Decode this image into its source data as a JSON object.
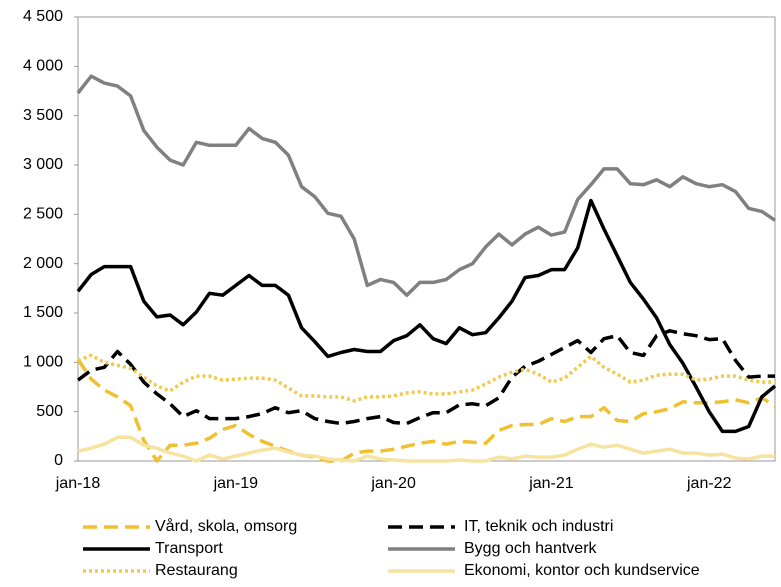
{
  "chart_data": {
    "type": "line",
    "categories": [
      "jan-18",
      null,
      null,
      null,
      null,
      null,
      null,
      null,
      null,
      null,
      null,
      null,
      "jan-19",
      null,
      null,
      null,
      null,
      null,
      null,
      null,
      null,
      null,
      null,
      null,
      "jan-20",
      null,
      null,
      null,
      null,
      null,
      null,
      null,
      null,
      null,
      null,
      null,
      "jan-21",
      null,
      null,
      null,
      null,
      null,
      null,
      null,
      null,
      null,
      null,
      null,
      "jan-22",
      null,
      null,
      null,
      null,
      null
    ],
    "ylim": [
      0,
      4500
    ],
    "yticks": [
      0,
      500,
      {
        "value": 1000,
        "label": "1 000"
      },
      {
        "value": 1500,
        "label": "1 500"
      },
      {
        "value": 2000,
        "label": "2 000"
      },
      {
        "value": 2500,
        "label": "2 500"
      },
      {
        "value": 3000,
        "label": "3 000"
      },
      {
        "value": 3500,
        "label": "3 500"
      },
      {
        "value": 4000,
        "label": "4 000"
      },
      {
        "value": 4500,
        "label": "4 500"
      }
    ],
    "legend": "bottom",
    "series": [
      {
        "name": "Vård, skola, omsorg",
        "color": "#f0c030",
        "dash": "dashed",
        "values": [
          1030,
          830,
          720,
          650,
          560,
          210,
          0,
          160,
          160,
          180,
          230,
          320,
          360,
          270,
          200,
          150,
          100,
          60,
          40,
          0,
          0,
          80,
          100,
          100,
          120,
          150,
          180,
          200,
          170,
          200,
          190,
          180,
          310,
          360,
          370,
          370,
          430,
          400,
          450,
          450,
          540,
          410,
          400,
          480,
          500,
          530,
          600,
          590,
          590,
          600,
          620,
          590,
          640,
          560
        ]
      },
      {
        "name": "IT, teknik och industri",
        "color": "#000000",
        "dash": "dashed",
        "values": [
          820,
          920,
          950,
          1110,
          980,
          800,
          680,
          580,
          450,
          510,
          430,
          430,
          430,
          450,
          480,
          540,
          490,
          510,
          430,
          400,
          380,
          400,
          430,
          450,
          390,
          380,
          440,
          490,
          490,
          570,
          580,
          560,
          640,
          850,
          960,
          1010,
          1080,
          1150,
          1220,
          1100,
          1240,
          1270,
          1100,
          1070,
          1270,
          1320,
          1290,
          1270,
          1230,
          1240,
          1020,
          850,
          860,
          860
        ]
      },
      {
        "name": "Transport",
        "color": "#000000",
        "dash": "solid",
        "values": [
          1720,
          1890,
          1970,
          1970,
          1970,
          1620,
          1460,
          1480,
          1380,
          1510,
          1700,
          1680,
          1780,
          1880,
          1780,
          1780,
          1680,
          1350,
          1210,
          1060,
          1100,
          1130,
          1110,
          1110,
          1220,
          1270,
          1380,
          1240,
          1190,
          1350,
          1280,
          1300,
          1450,
          1620,
          1860,
          1880,
          1940,
          1940,
          2160,
          2640,
          2350,
          2080,
          1810,
          1640,
          1450,
          1180,
          990,
          750,
          500,
          300,
          300,
          350,
          650,
          760
        ]
      },
      {
        "name": "Bygg och hantverk",
        "color": "#808080",
        "dash": "solid",
        "values": [
          3730,
          3900,
          3830,
          3800,
          3700,
          3350,
          3180,
          3050,
          3000,
          3230,
          3200,
          3200,
          3200,
          3370,
          3270,
          3230,
          3100,
          2780,
          2680,
          2510,
          2480,
          2250,
          1780,
          1840,
          1810,
          1680,
          1810,
          1810,
          1840,
          1940,
          2000,
          2170,
          2300,
          2190,
          2300,
          2370,
          2290,
          2320,
          2650,
          2800,
          2960,
          2960,
          2810,
          2800,
          2850,
          2780,
          2880,
          2810,
          2780,
          2800,
          2730,
          2560,
          2530,
          2440
        ]
      },
      {
        "name": "Restaurang",
        "color": "#f2c94c",
        "dash": "dotted",
        "values": [
          1020,
          1070,
          1000,
          970,
          940,
          850,
          760,
          710,
          800,
          860,
          860,
          820,
          830,
          840,
          840,
          820,
          740,
          660,
          660,
          650,
          650,
          610,
          650,
          650,
          660,
          690,
          700,
          680,
          680,
          700,
          720,
          780,
          850,
          900,
          930,
          880,
          800,
          840,
          950,
          1060,
          950,
          880,
          800,
          820,
          870,
          880,
          880,
          820,
          830,
          860,
          860,
          820,
          800,
          800
        ]
      },
      {
        "name": "Ekonomi, kontor och kundservice",
        "color": "#f7e3a0",
        "dash": "solid",
        "values": [
          100,
          130,
          170,
          240,
          240,
          160,
          130,
          80,
          50,
          0,
          60,
          20,
          50,
          80,
          110,
          130,
          90,
          60,
          50,
          20,
          10,
          0,
          50,
          20,
          10,
          0,
          0,
          0,
          0,
          10,
          0,
          0,
          40,
          20,
          50,
          40,
          40,
          60,
          120,
          170,
          140,
          160,
          120,
          80,
          100,
          120,
          80,
          80,
          60,
          70,
          30,
          20,
          50,
          50
        ]
      }
    ]
  }
}
